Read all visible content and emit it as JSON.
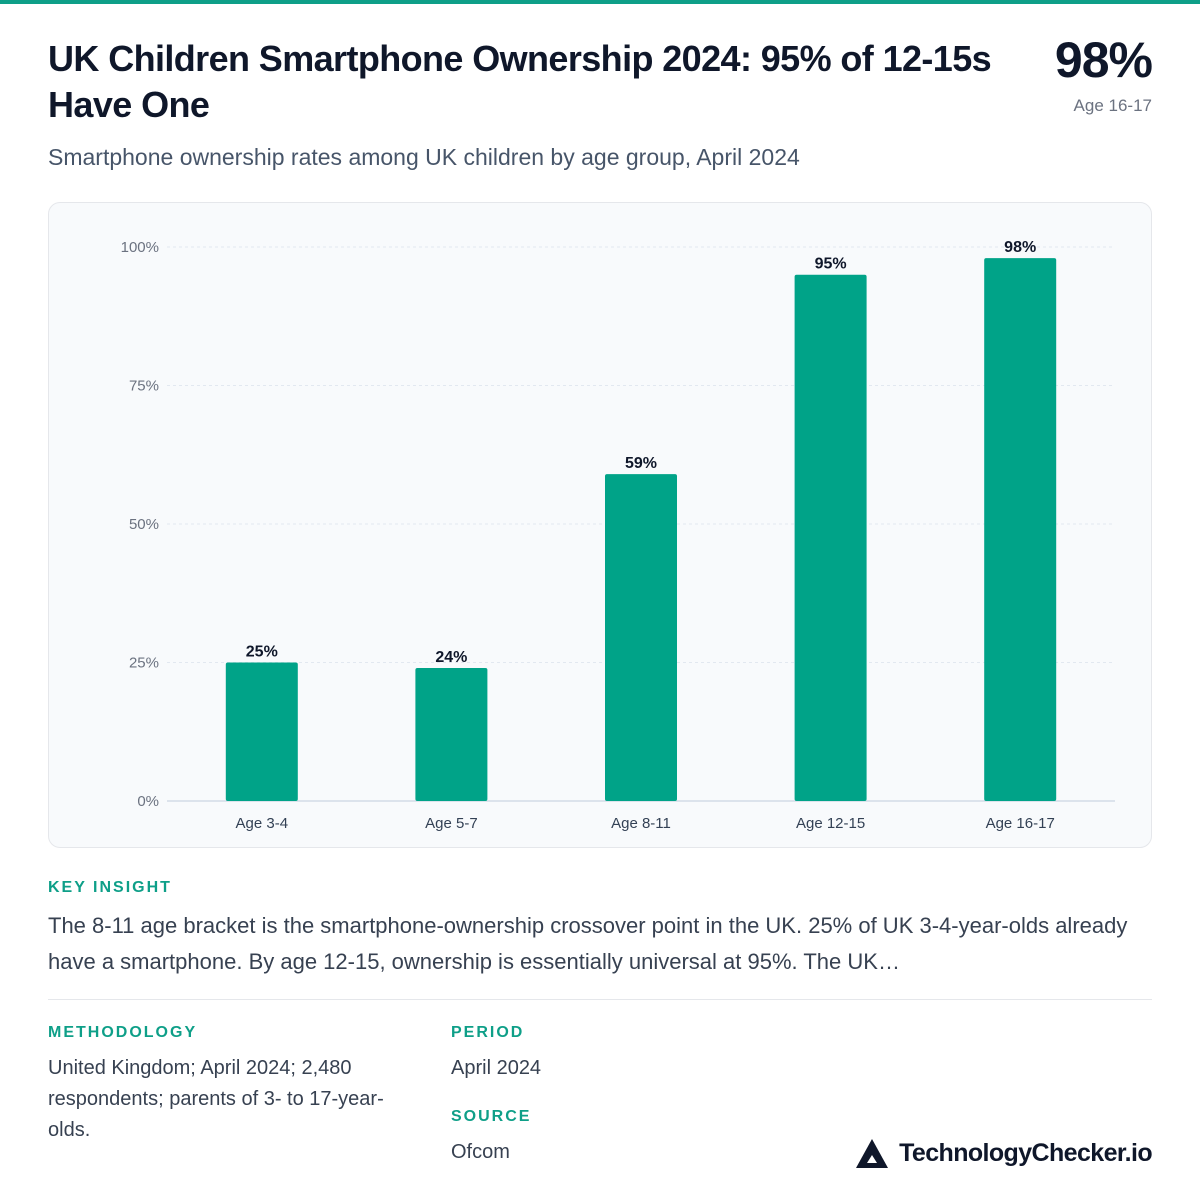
{
  "header": {
    "title": "UK Children Smartphone Ownership 2024: 95% of 12-15s Have One",
    "subtitle": "Smartphone ownership rates among UK children by age group, April 2024",
    "hero_value": "98%",
    "hero_label": "Age 16-17"
  },
  "chart_data": {
    "type": "bar",
    "categories": [
      "Age 3-4",
      "Age 5-7",
      "Age 8-11",
      "Age 12-15",
      "Age 16-17"
    ],
    "values": [
      25,
      24,
      59,
      95,
      98
    ],
    "value_labels": [
      "25%",
      "24%",
      "59%",
      "95%",
      "98%"
    ],
    "ylim": [
      0,
      100
    ],
    "yticks": [
      0,
      25,
      50,
      75,
      100
    ],
    "ytick_labels": [
      "0%",
      "25%",
      "50%",
      "75%",
      "100%"
    ],
    "grid": true,
    "bar_color": "#00a388"
  },
  "insight": {
    "heading": "KEY INSIGHT",
    "text": "The 8-11 age bracket is the smartphone-ownership crossover point in the UK. 25% of UK 3-4-year-olds already have a smartphone. By age 12-15, ownership is essentially universal at 95%. The UK…"
  },
  "methodology": {
    "heading": "METHODOLOGY",
    "text": "United Kingdom; April 2024; 2,480 respondents; parents of 3- to 17-year-olds."
  },
  "period": {
    "heading": "PERIOD",
    "text": "April 2024"
  },
  "source": {
    "heading": "SOURCE",
    "text": "Ofcom"
  },
  "brand": {
    "name": "TechnologyChecker.io",
    "icon": "triangle-logo-icon"
  },
  "colors": {
    "accent": "#0e9f88",
    "bar": "#00a388",
    "title": "#0f172a"
  }
}
